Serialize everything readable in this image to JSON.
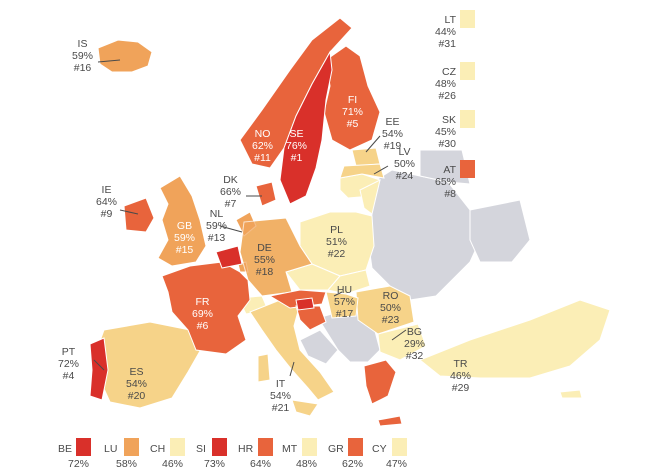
{
  "colors": {
    "sea": "#ffffff",
    "noData": "#d4d5dc",
    "level1": "#fbeeb6",
    "level2": "#f6d389",
    "level3": "#f0a35a",
    "level4": "#e8643c",
    "level5": "#d9302a"
  },
  "countries": {
    "IS": {
      "code": "IS",
      "pct": "59%",
      "rank": "#16"
    },
    "NO": {
      "code": "NO",
      "pct": "62%",
      "rank": "#11"
    },
    "SE": {
      "code": "SE",
      "pct": "76%",
      "rank": "#1"
    },
    "FI": {
      "code": "FI",
      "pct": "71%",
      "rank": "#5"
    },
    "EE": {
      "code": "EE",
      "pct": "54%",
      "rank": "#19"
    },
    "LV": {
      "code": "LV",
      "pct": "50%",
      "rank": "#24"
    },
    "DK": {
      "code": "DK",
      "pct": "66%",
      "rank": "#7"
    },
    "IE": {
      "code": "IE",
      "pct": "64%",
      "rank": "#9"
    },
    "GB": {
      "code": "GB",
      "pct": "59%",
      "rank": "#15"
    },
    "NL": {
      "code": "NL",
      "pct": "59%",
      "rank": "#13"
    },
    "DE": {
      "code": "DE",
      "pct": "55%",
      "rank": "#18"
    },
    "PL": {
      "code": "PL",
      "pct": "51%",
      "rank": "#22"
    },
    "FR": {
      "code": "FR",
      "pct": "69%",
      "rank": "#6"
    },
    "HU": {
      "code": "HU",
      "pct": "57%",
      "rank": "#17"
    },
    "RO": {
      "code": "RO",
      "pct": "50%",
      "rank": "#23"
    },
    "BG": {
      "code": "BG",
      "pct": "29%",
      "rank": "#32"
    },
    "PT": {
      "code": "PT",
      "pct": "72%",
      "rank": "#4"
    },
    "ES": {
      "code": "ES",
      "pct": "54%",
      "rank": "#20"
    },
    "IT": {
      "code": "IT",
      "pct": "54%",
      "rank": "#21"
    },
    "TR": {
      "code": "TR",
      "pct": "46%",
      "rank": "#29"
    }
  },
  "sidebar": [
    {
      "code": "LT",
      "pct": "44%",
      "rank": "#31"
    },
    {
      "code": "CZ",
      "pct": "48%",
      "rank": "#26"
    },
    {
      "code": "SK",
      "pct": "45%",
      "rank": "#30"
    },
    {
      "code": "AT",
      "pct": "65%",
      "rank": "#8"
    }
  ],
  "legend": [
    {
      "code": "BE",
      "value": "72%"
    },
    {
      "code": "LU",
      "value": "58%"
    },
    {
      "code": "CH",
      "value": "46%"
    },
    {
      "code": "SI",
      "value": "73%"
    },
    {
      "code": "HR",
      "value": "64%"
    },
    {
      "code": "MT",
      "value": "48%"
    },
    {
      "code": "GR",
      "value": "62%"
    },
    {
      "code": "CY",
      "value": "47%"
    }
  ]
}
